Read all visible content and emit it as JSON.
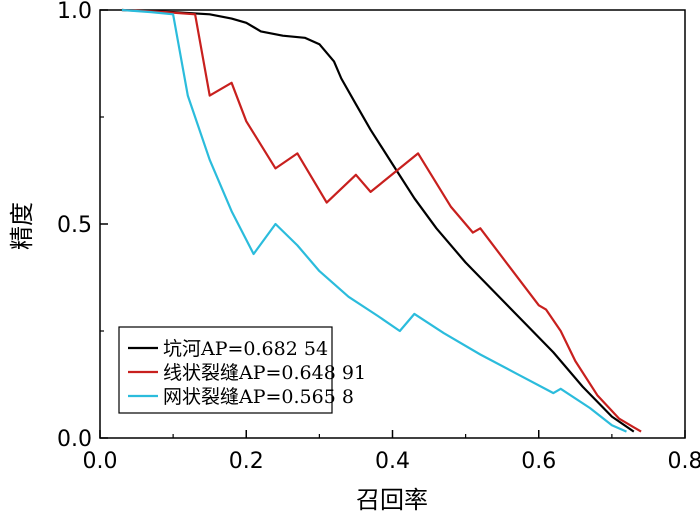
{
  "chart_data": {
    "type": "line",
    "title": "",
    "xlabel": "召回率",
    "ylabel": "精度",
    "xlim": [
      0.0,
      0.8
    ],
    "ylim": [
      0.0,
      1.0
    ],
    "xticks": [
      0.0,
      0.2,
      0.4,
      0.6,
      0.8
    ],
    "xtick_labels": [
      "0.0",
      "0.2",
      "0.4",
      "0.6",
      "0.8"
    ],
    "yticks": [
      0.0,
      0.5,
      1.0
    ],
    "ytick_labels": [
      "0.0",
      "0.5",
      "1.0"
    ],
    "grid": false,
    "legend_position": "bottom-left",
    "series": [
      {
        "name": "坑河AP=0.682 54",
        "color": "#000000",
        "points": [
          [
            0.03,
            1.0
          ],
          [
            0.1,
            0.995
          ],
          [
            0.15,
            0.99
          ],
          [
            0.18,
            0.98
          ],
          [
            0.2,
            0.97
          ],
          [
            0.22,
            0.95
          ],
          [
            0.25,
            0.94
          ],
          [
            0.28,
            0.935
          ],
          [
            0.3,
            0.92
          ],
          [
            0.32,
            0.88
          ],
          [
            0.33,
            0.84
          ],
          [
            0.35,
            0.78
          ],
          [
            0.37,
            0.72
          ],
          [
            0.4,
            0.64
          ],
          [
            0.43,
            0.56
          ],
          [
            0.46,
            0.49
          ],
          [
            0.5,
            0.41
          ],
          [
            0.54,
            0.34
          ],
          [
            0.58,
            0.27
          ],
          [
            0.62,
            0.2
          ],
          [
            0.66,
            0.12
          ],
          [
            0.7,
            0.05
          ],
          [
            0.73,
            0.015
          ]
        ]
      },
      {
        "name": "线状裂缝AP=0.648 91",
        "color": "#c8201e",
        "points": [
          [
            0.03,
            1.0
          ],
          [
            0.09,
            0.995
          ],
          [
            0.13,
            0.99
          ],
          [
            0.15,
            0.8
          ],
          [
            0.18,
            0.83
          ],
          [
            0.2,
            0.74
          ],
          [
            0.24,
            0.63
          ],
          [
            0.27,
            0.665
          ],
          [
            0.31,
            0.55
          ],
          [
            0.35,
            0.615
          ],
          [
            0.37,
            0.575
          ],
          [
            0.435,
            0.665
          ],
          [
            0.48,
            0.54
          ],
          [
            0.51,
            0.48
          ],
          [
            0.52,
            0.49
          ],
          [
            0.56,
            0.4
          ],
          [
            0.6,
            0.31
          ],
          [
            0.61,
            0.3
          ],
          [
            0.63,
            0.25
          ],
          [
            0.65,
            0.18
          ],
          [
            0.68,
            0.1
          ],
          [
            0.71,
            0.045
          ],
          [
            0.74,
            0.015
          ]
        ]
      },
      {
        "name": "网状裂缝AP=0.565 8",
        "color": "#2bbcdc",
        "points": [
          [
            0.03,
            1.0
          ],
          [
            0.07,
            0.995
          ],
          [
            0.1,
            0.99
          ],
          [
            0.12,
            0.8
          ],
          [
            0.15,
            0.65
          ],
          [
            0.18,
            0.53
          ],
          [
            0.21,
            0.43
          ],
          [
            0.24,
            0.5
          ],
          [
            0.27,
            0.45
          ],
          [
            0.3,
            0.39
          ],
          [
            0.34,
            0.33
          ],
          [
            0.38,
            0.285
          ],
          [
            0.41,
            0.25
          ],
          [
            0.43,
            0.29
          ],
          [
            0.47,
            0.245
          ],
          [
            0.52,
            0.195
          ],
          [
            0.57,
            0.15
          ],
          [
            0.62,
            0.105
          ],
          [
            0.63,
            0.115
          ],
          [
            0.67,
            0.07
          ],
          [
            0.7,
            0.03
          ],
          [
            0.72,
            0.015
          ]
        ]
      }
    ]
  }
}
